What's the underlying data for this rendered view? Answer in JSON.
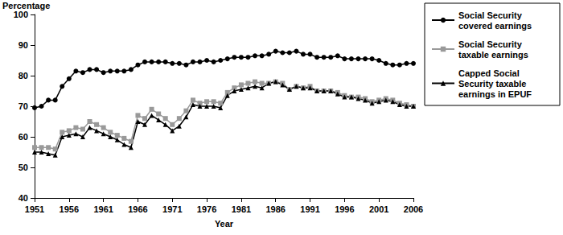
{
  "chart_data": {
    "type": "line",
    "y_label": "Percentage",
    "x_label": "Year",
    "x": [
      1951,
      1952,
      1953,
      1954,
      1955,
      1956,
      1957,
      1958,
      1959,
      1960,
      1961,
      1962,
      1963,
      1964,
      1965,
      1966,
      1967,
      1968,
      1969,
      1970,
      1971,
      1972,
      1973,
      1974,
      1975,
      1976,
      1977,
      1978,
      1979,
      1980,
      1981,
      1982,
      1983,
      1984,
      1985,
      1986,
      1987,
      1988,
      1989,
      1990,
      1991,
      1992,
      1993,
      1994,
      1995,
      1996,
      1997,
      1998,
      1999,
      2000,
      2001,
      2002,
      2003,
      2004,
      2005,
      2006
    ],
    "series": [
      {
        "name": "Social Security covered earnings",
        "color": "#000000",
        "marker": "circle",
        "line_style": "solid",
        "values": [
          69.5,
          70,
          72,
          72,
          76.5,
          79,
          81.5,
          81,
          82,
          82,
          81,
          81.5,
          81.5,
          81.5,
          82,
          83.5,
          84.5,
          84.5,
          84.5,
          84.5,
          84,
          84,
          83.5,
          84.5,
          84.5,
          85,
          84.5,
          85,
          85.5,
          86,
          86,
          86,
          86.5,
          86.5,
          87,
          88,
          87.5,
          87.5,
          88,
          87,
          87,
          86,
          86,
          86,
          86.5,
          85.5,
          85.5,
          85.5,
          85.5,
          85.5,
          85,
          84,
          83.5,
          83.5,
          84,
          84
        ]
      },
      {
        "name": "Social Security taxable earnings",
        "color": "#999999",
        "marker": "square",
        "line_style": "solid",
        "values": [
          56.5,
          56.5,
          56.5,
          56,
          61.5,
          62,
          63,
          62.5,
          65,
          64,
          63,
          61.5,
          60.5,
          59.5,
          58.5,
          67,
          66,
          69,
          67.5,
          66,
          64,
          66,
          68.5,
          72,
          71,
          71.5,
          71.5,
          71,
          74.5,
          76,
          77,
          77.5,
          78,
          77.5,
          77.5,
          78,
          77.5,
          75.5,
          76.5,
          76,
          76.5,
          75,
          75,
          75,
          74.5,
          73.5,
          73,
          73,
          72.5,
          71.5,
          72,
          72.5,
          72,
          71,
          70.5,
          70
        ]
      },
      {
        "name": "Capped Social Security taxable earnings in EPUF",
        "color": "#000000",
        "marker": "triangle",
        "line_style": "solid",
        "values": [
          55,
          55,
          54.5,
          54,
          60,
          60.5,
          61,
          60,
          63,
          62,
          61,
          60,
          59,
          57.5,
          56.5,
          65,
          64,
          67,
          65.5,
          64,
          62,
          63.5,
          66.5,
          70.5,
          70,
          70,
          70,
          69.5,
          73.5,
          75,
          75.5,
          76,
          76.5,
          76,
          77.5,
          78,
          77,
          75.5,
          76.5,
          76,
          76,
          75,
          75,
          75,
          74,
          73,
          73,
          72.5,
          72,
          71,
          71.5,
          72,
          71.5,
          70.5,
          70,
          70
        ]
      }
    ],
    "xlim": [
      1951,
      2006
    ],
    "xticks": [
      1951,
      1956,
      1961,
      1966,
      1971,
      1976,
      1981,
      1986,
      1991,
      1996,
      2001,
      2006
    ],
    "ylim": [
      40,
      100
    ],
    "yticks": [
      40,
      50,
      60,
      70,
      80,
      90,
      100
    ],
    "grid": false,
    "legend": "right"
  }
}
